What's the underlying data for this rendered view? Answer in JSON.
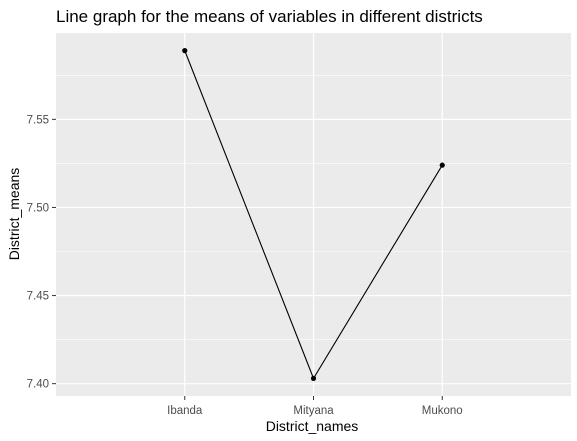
{
  "chart_data": {
    "type": "line",
    "title": "Line graph for the means of variables in different districts",
    "xlabel": "District_names",
    "ylabel": "District_means",
    "categories": [
      "Ibanda",
      "Mityana",
      "Mukono"
    ],
    "values": [
      7.589,
      7.403,
      7.524
    ],
    "ylim": [
      7.393,
      7.599
    ],
    "yticks": [
      7.4,
      7.45,
      7.5,
      7.55
    ],
    "ytick_labels": [
      "7.40",
      "7.45",
      "7.50",
      "7.55"
    ],
    "grid": true,
    "colors": {
      "panel": "#ebebeb",
      "grid": "#ffffff",
      "line": "#000000",
      "point": "#000000"
    }
  }
}
